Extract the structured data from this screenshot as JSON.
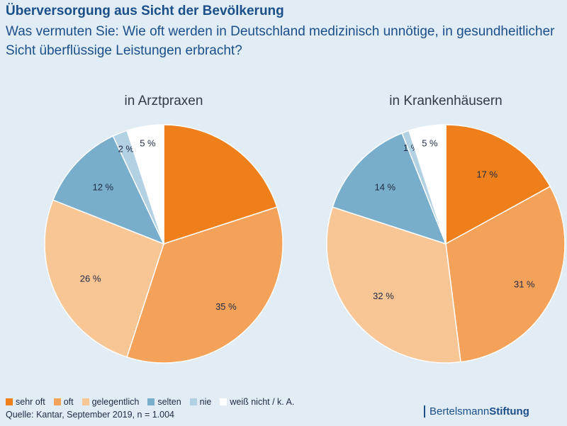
{
  "header": {
    "title": "Überversorgung aus Sicht der Bevölkerung",
    "subtitle": "Was vermuten Sie: Wie oft werden in Deutschland medizinisch unnötige, in gesundheitlicher Sicht überflüssige Leistungen erbracht?"
  },
  "colors": {
    "sehr_oft": "#ee7f1a",
    "oft": "#f4a259",
    "gelegentlich": "#f8c594",
    "selten": "#78aecb",
    "nie": "#b2d1e3",
    "weiss_nicht": "#ffffff"
  },
  "chart_data": [
    {
      "type": "pie",
      "title": "in Arztpraxen",
      "slices": [
        {
          "name": "sehr oft",
          "value": 20,
          "label": ""
        },
        {
          "name": "oft",
          "value": 35,
          "label": "35 %"
        },
        {
          "name": "gelegentlich",
          "value": 26,
          "label": "26 %"
        },
        {
          "name": "selten",
          "value": 12,
          "label": "12 %"
        },
        {
          "name": "nie",
          "value": 2,
          "label": "2 %"
        },
        {
          "name": "weiß nicht / k. A.",
          "value": 5,
          "label": "5 %"
        }
      ]
    },
    {
      "type": "pie",
      "title": "in Krankenhäusern",
      "slices": [
        {
          "name": "sehr oft",
          "value": 17,
          "label": "17 %"
        },
        {
          "name": "oft",
          "value": 31,
          "label": "31 %"
        },
        {
          "name": "gelegentlich",
          "value": 32,
          "label": "32 %"
        },
        {
          "name": "selten",
          "value": 14,
          "label": "14 %"
        },
        {
          "name": "nie",
          "value": 1,
          "label": "1 %"
        },
        {
          "name": "weiß nicht / k. A.",
          "value": 5,
          "label": "5 %"
        }
      ]
    }
  ],
  "legend": [
    {
      "label": "sehr oft",
      "color": "#ee7f1a"
    },
    {
      "label": "oft",
      "color": "#f4a259"
    },
    {
      "label": "gelegentlich",
      "color": "#f8c594"
    },
    {
      "label": "selten",
      "color": "#78aecb"
    },
    {
      "label": "nie",
      "color": "#b2d1e3"
    },
    {
      "label": "weiß nicht / k. A.",
      "color": "#ffffff"
    }
  ],
  "footer": {
    "source": "Quelle: Kantar, September 2019, n = 1.004",
    "brand_regular": "Bertelsmann",
    "brand_bold": "Stiftung"
  }
}
